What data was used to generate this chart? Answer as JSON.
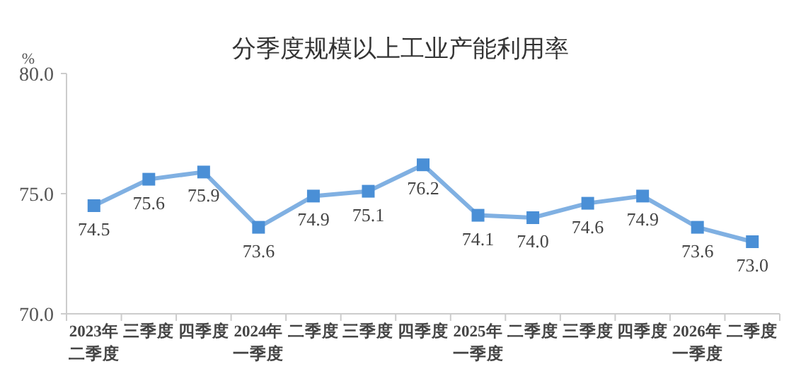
{
  "chart_data": {
    "type": "line",
    "title": "分季度规模以上工业产能利用率",
    "ylabel": "%",
    "categories": [
      "2023年二季度",
      "三季度",
      "四季度",
      "2024年一季度",
      "二季度",
      "三季度",
      "四季度",
      "2025年一季度",
      "二季度",
      "三季度",
      "四季度",
      "2026年一季度",
      "二季度"
    ],
    "series": [
      {
        "color": "#4a8fd6",
        "values": [
          74.5,
          75.6,
          75.9,
          73.6,
          74.9,
          75.1,
          76.2,
          74.1,
          74.0,
          74.6,
          74.9,
          73.6,
          73.0
        ],
        "value_labels": [
          "74.5",
          "75.6",
          "75.9",
          "73.6",
          "74.9",
          "75.1",
          "76.2",
          "74.1",
          "74.0",
          "74.6",
          "74.9",
          "73.6",
          "73.0"
        ]
      }
    ],
    "ylim": [
      70,
      80
    ],
    "yticks": [
      {
        "value": 70,
        "label": "70.0"
      },
      {
        "value": 75,
        "label": "75.0"
      },
      {
        "value": 80,
        "label": "80.0"
      }
    ],
    "marker": "square",
    "grid": false
  }
}
